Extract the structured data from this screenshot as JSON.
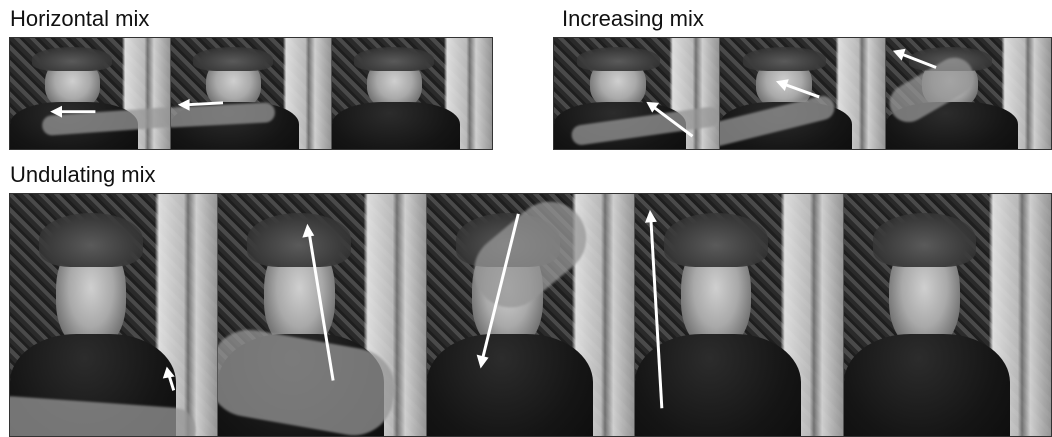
{
  "sections": {
    "horizontal": {
      "title": "Horizontal mix"
    },
    "increasing": {
      "title": "Increasing mix"
    },
    "undulating": {
      "title": "Undulating mix"
    }
  },
  "colors": {
    "arrow": "#ffffff",
    "background": "#ffffff",
    "text": "#111111"
  }
}
